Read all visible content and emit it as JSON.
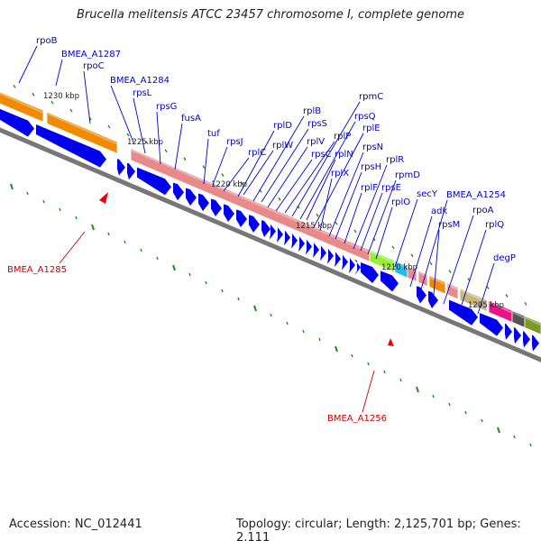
{
  "title": "Brucella melitensis ATCC 23457 chromosome I, complete genome",
  "accession": "Accession: NC_012441",
  "topology": "Topology: circular; Length: 2,125,701 bp; Genes: 2,111",
  "colors": {
    "gene_label": "#0000cc",
    "highlight_label": "#cc0000",
    "forward_strand": "#0000ee",
    "ribosomal_operon": "#e88a8a",
    "backbone": "#777777",
    "tick": "#228b22"
  },
  "scale_labels": [
    "1230 kbp",
    "1225 kbp",
    "1220 kbp",
    "1215 kbp",
    "1210 kbp",
    "1205 kbp"
  ],
  "gene_labels": [
    "rpoB",
    "BMEA_A1287",
    "rpoC",
    "BMEA_A1284",
    "rpsL",
    "rpsG",
    "fusA",
    "tuf",
    "rpsJ",
    "rplC",
    "rplD",
    "rplW",
    "rplB",
    "rpsS",
    "rplV",
    "rpsC",
    "rplP",
    "rpmC",
    "rpsQ",
    "rplN",
    "rplE",
    "rplX",
    "rpsN",
    "rpsH",
    "rplF",
    "rplR",
    "rpsE",
    "rpmD",
    "rplO",
    "secY",
    "BMEA_A1254",
    "adk",
    "rpsM",
    "rpoA",
    "rplQ",
    "degP"
  ],
  "highlight_labels": [
    "BMEA_A1285",
    "BMEA_A1256"
  ]
}
